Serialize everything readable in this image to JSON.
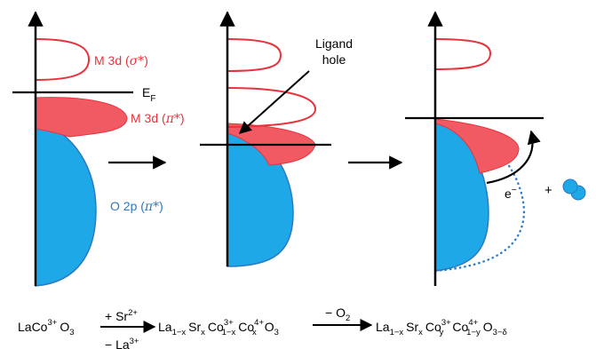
{
  "colors": {
    "red": "#e8323c",
    "red_fill": "#f25a63",
    "blue": "#1fa8e8",
    "blue_edge": "#2a79c2",
    "black": "#000000"
  },
  "labels": {
    "m3d_sigma": {
      "prefix": "M 3d (",
      "sym": "σ*",
      "suffix": ")"
    },
    "m3d_pi": {
      "prefix": "M 3d (",
      "sym": "π*",
      "suffix": ")"
    },
    "o2p_pi": {
      "prefix": "O 2p (",
      "sym": "π*",
      "suffix": ")"
    },
    "fermi_E": "E",
    "fermi_sub": "F",
    "ligand_hole_line1": "Ligand",
    "ligand_hole_line2": "hole",
    "electron": "e",
    "electron_sup": "−",
    "plus_sign": "+"
  },
  "equation": {
    "reactant": {
      "base": "LaCo",
      "sup": "3+",
      "tail": "O",
      "tail_sub": "3"
    },
    "arrow1_top": {
      "base": "+ Sr",
      "sup": "2+"
    },
    "arrow1_bottom": {
      "base": "− La",
      "sup": "3+"
    },
    "intermediate": {
      "la": "La",
      "la_sub": "1−x",
      "sr": "Sr",
      "sr_sub": "x",
      "co1": "Co",
      "co1_sup": "3+",
      "co1_sub": "1−x",
      "co2": "Co",
      "co2_sup": "4+",
      "co2_sub": "x",
      "o": "O",
      "o_sub": "3"
    },
    "arrow2_top": {
      "base": "− O",
      "sub": "2"
    },
    "product": {
      "la": "La",
      "la_sub": "1−x",
      "sr": "Sr",
      "sr_sub": "x",
      "co1": "Co",
      "co1_sup": "3+",
      "co1_sub": "y",
      "co2": "Co",
      "co2_sup": "4+",
      "co2_sub": "1−y",
      "o": "O",
      "o_sub": "3−δ"
    }
  }
}
